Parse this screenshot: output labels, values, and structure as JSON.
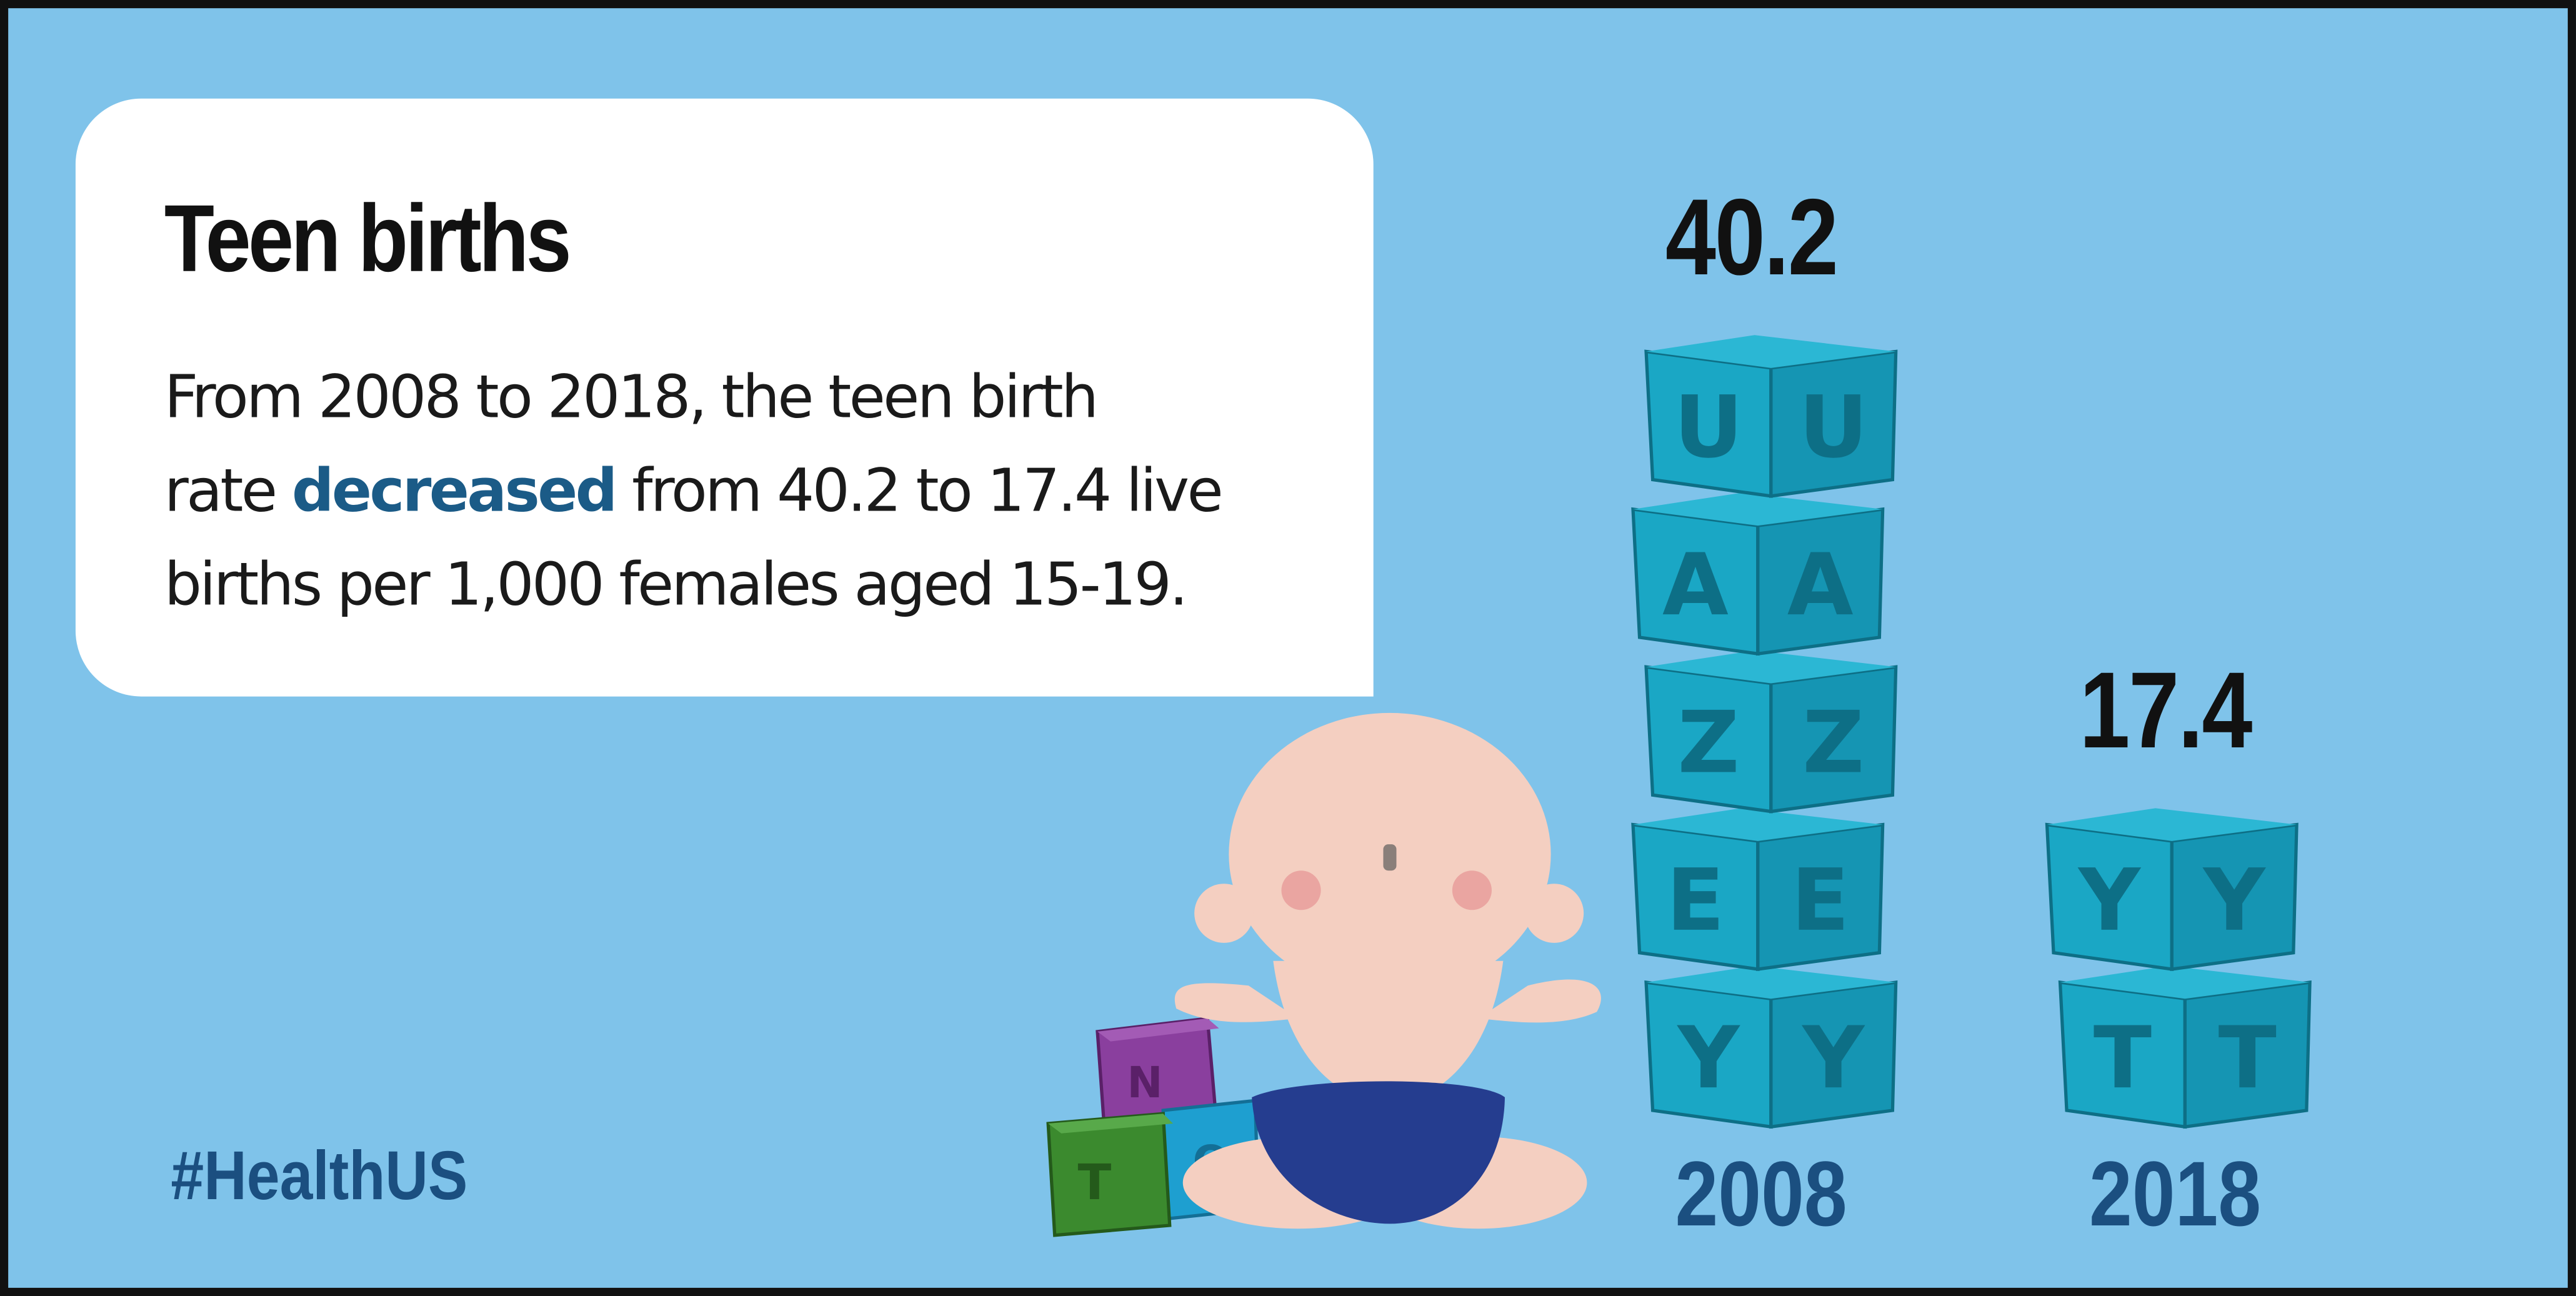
{
  "card": {
    "title": "Teen births",
    "lines": [
      "From 2008 to 2018, the teen birth",
      "rate ",
      "decreased",
      " from 40.2 to 17.4 live",
      "births per 1,000 females aged 15-19."
    ]
  },
  "hashtag": "#HealthUS",
  "chart_data": {
    "type": "bar",
    "categories": [
      "2008",
      "2018"
    ],
    "values": [
      40.2,
      17.4
    ],
    "value_labels": [
      "40.2",
      "17.4"
    ]
  },
  "colors": {
    "background": "#7fc3ea",
    "block_teal": "#1aa7c5",
    "accent_text": "#1b5b87",
    "year_text": "#1b4f80"
  },
  "blocks_2008_letters": [
    "Y",
    "E",
    "Z",
    "A",
    "U"
  ],
  "blocks_2018_letters": [
    "T",
    "Y"
  ],
  "toy_blocks_letters": [
    "T",
    "N",
    "O"
  ]
}
